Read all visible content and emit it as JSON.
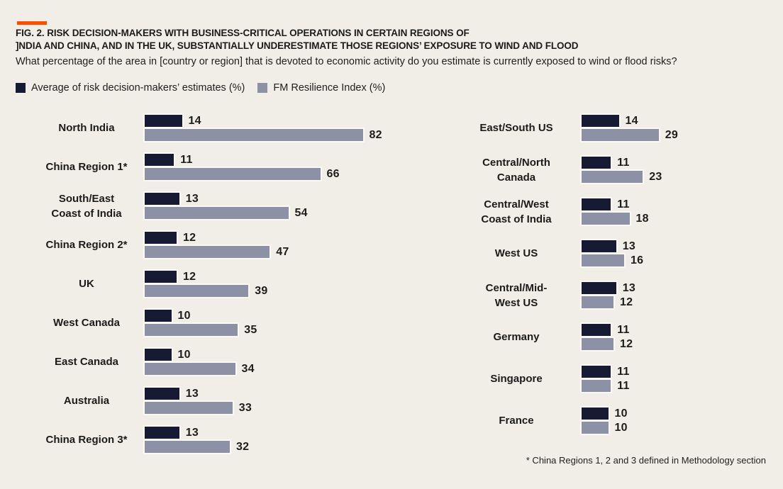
{
  "header": {
    "title_line1": "FIG. 2. RISK DECISION-MAKERS WITH BUSINESS-CRITICAL OPERATIONS IN CERTAIN REGIONS OF",
    "title_line2": "]NDIA AND CHINA, AND IN THE UK, SUBSTANTIALLY UNDERESTIMATE THOSE REGIONS’ EXPOSURE TO WIND AND FLOOD",
    "subtitle": "What percentage of the area in [country or region] that is devoted to economic activity do you estimate is currently exposed to wind or flood risks?"
  },
  "legend": [
    {
      "label": "Average of risk decision-makers’ estimates (%)",
      "color": "#171a33"
    },
    {
      "label": "FM Resilience Index (%)",
      "color": "#8c91a6"
    }
  ],
  "footnote": "* China Regions 1, 2 and 3 defined in Methodology section",
  "colors": {
    "accent": "#FF4D00",
    "estimate_bar": "#171a33",
    "index_bar": "#8c91a6",
    "background": "#f1eee7",
    "text": "#1d1d1b"
  },
  "chart_data": {
    "type": "bar",
    "orientation": "horizontal",
    "title": "FIG. 2. Risk decision-makers with business-critical operations in certain regions of India and China, and in the UK, substantially underestimate those regions' exposure to wind and flood",
    "value_unit": "%",
    "value_axis_max": 82,
    "grid": false,
    "legend_position": "top-left",
    "series": [
      {
        "name": "Average of risk decision-makers’ estimates (%)",
        "color": "#171a33"
      },
      {
        "name": "FM Resilience Index (%)",
        "color": "#8c91a6"
      }
    ],
    "columns": [
      {
        "rows": [
          {
            "label": "North India",
            "estimate": 14,
            "index": 82
          },
          {
            "label": "China Region 1*",
            "estimate": 11,
            "index": 66
          },
          {
            "label": "South/East\nCoast of India",
            "estimate": 13,
            "index": 54
          },
          {
            "label": "China Region 2*",
            "estimate": 12,
            "index": 47
          },
          {
            "label": "UK",
            "estimate": 12,
            "index": 39
          },
          {
            "label": "West Canada",
            "estimate": 10,
            "index": 35
          },
          {
            "label": "East Canada",
            "estimate": 10,
            "index": 34
          },
          {
            "label": "Australia",
            "estimate": 13,
            "index": 33
          },
          {
            "label": "China Region 3*",
            "estimate": 13,
            "index": 32
          }
        ]
      },
      {
        "rows": [
          {
            "label": "East/South US",
            "estimate": 14,
            "index": 29
          },
          {
            "label": "Central/North\nCanada",
            "estimate": 11,
            "index": 23
          },
          {
            "label": "Central/West\nCoast of India",
            "estimate": 11,
            "index": 18
          },
          {
            "label": "West US",
            "estimate": 13,
            "index": 16
          },
          {
            "label": "Central/Mid-\nWest US",
            "estimate": 13,
            "index": 12
          },
          {
            "label": "Germany",
            "estimate": 11,
            "index": 12
          },
          {
            "label": "Singapore",
            "estimate": 11,
            "index": 11
          },
          {
            "label": "France",
            "estimate": 10,
            "index": 10
          }
        ]
      }
    ]
  }
}
